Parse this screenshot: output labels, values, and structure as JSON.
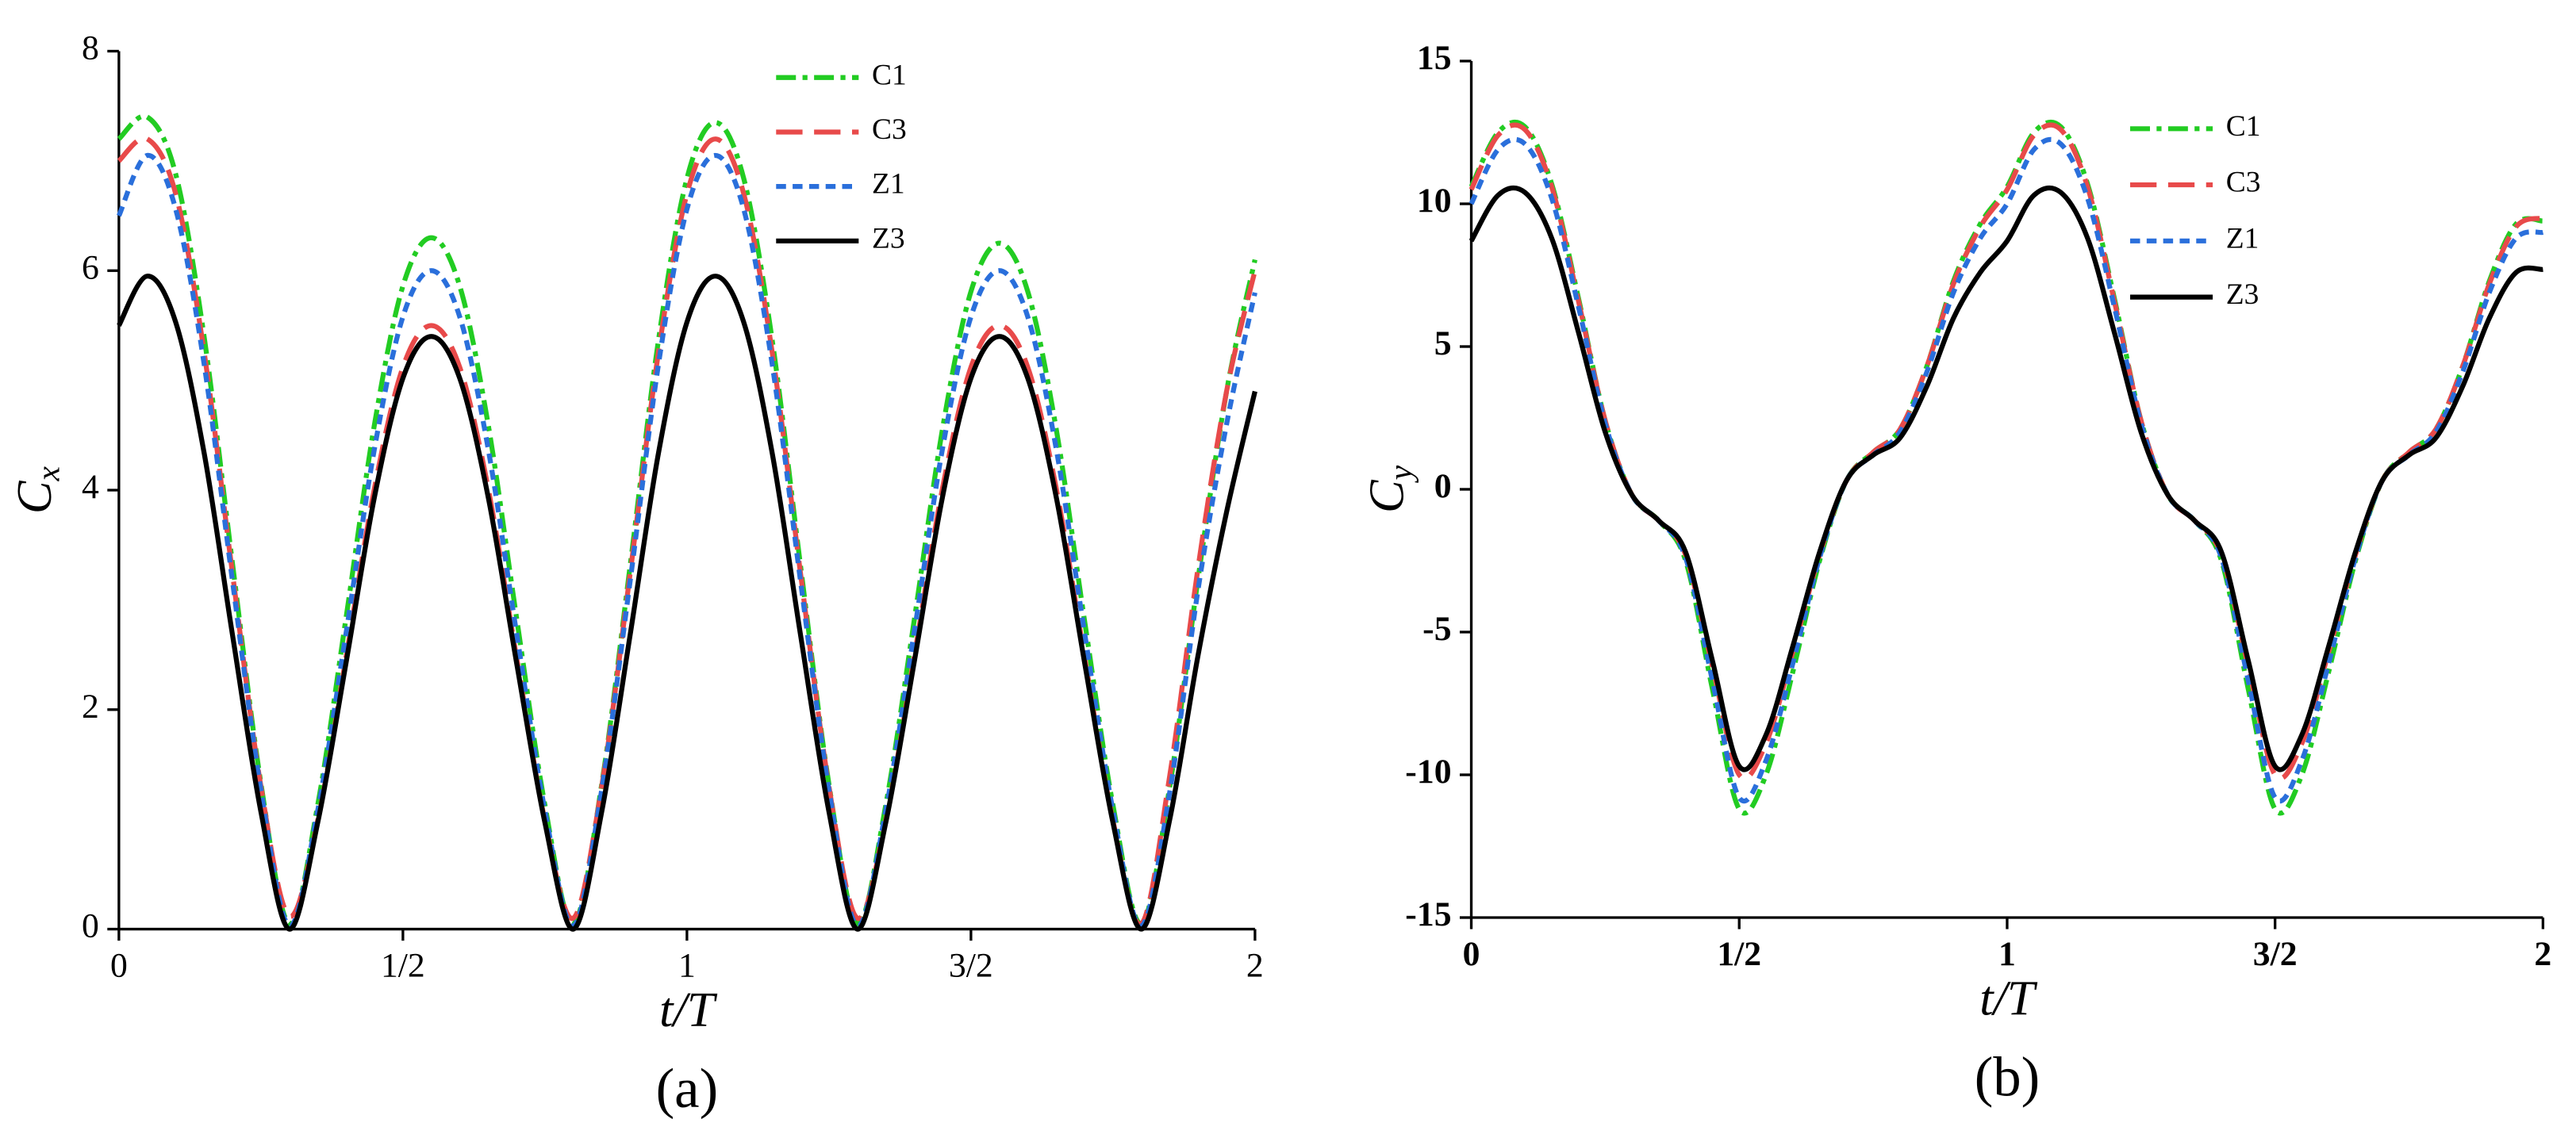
{
  "chart_data": [
    {
      "type": "line",
      "ylabel": "C",
      "ylabel_sub": "x",
      "xlabel": "t/T",
      "caption": "(a)",
      "xlim": [
        0,
        2
      ],
      "xticks": [
        0,
        {
          "value": 0.5,
          "label": "1/2"
        },
        1,
        {
          "value": 1.5,
          "label": "3/2"
        },
        2
      ],
      "ylim": [
        0,
        8
      ],
      "yticks": [
        0,
        2,
        4,
        6,
        8
      ],
      "legend": "upper right",
      "x": [
        0,
        0.05,
        0.1,
        0.15,
        0.2,
        0.25,
        0.3,
        0.35,
        0.4,
        0.45,
        0.5,
        0.55,
        0.6,
        0.65,
        0.7,
        0.75,
        0.8,
        0.85,
        0.9,
        0.95,
        1,
        1.05,
        1.1,
        1.15,
        1.2,
        1.25,
        1.3,
        1.35,
        1.4,
        1.45,
        1.5,
        1.55,
        1.6,
        1.65,
        1.7,
        1.75,
        1.8,
        1.85,
        1.9,
        1.95,
        2
      ],
      "series": [
        {
          "name": "C1",
          "color": "#22cc22",
          "dash": "12,4,3,4",
          "values": [
            7.2,
            7.4,
            6.88,
            5.4,
            3.33,
            1.33,
            0.05,
            1.13,
            2.84,
            4.6,
            5.86,
            6.3,
            5.86,
            4.6,
            2.84,
            1.13,
            0.05,
            1.32,
            3.31,
            5.37,
            6.84,
            7.35,
            6.84,
            5.37,
            3.31,
            1.32,
            0.05,
            1.13,
            2.81,
            4.56,
            5.81,
            6.25,
            5.81,
            4.56,
            2.81,
            1.13,
            0.05,
            1.3,
            3.2,
            4.9,
            6.1
          ]
        },
        {
          "name": "C3",
          "color": "#e84a4a",
          "dash": "16,7",
          "values": [
            7.0,
            7.2,
            6.7,
            5.26,
            3.24,
            1.3,
            0.12,
            0.99,
            2.48,
            4.02,
            5.12,
            5.5,
            5.12,
            4.02,
            2.48,
            0.99,
            0.1,
            1.3,
            3.24,
            5.26,
            6.7,
            7.2,
            6.7,
            5.26,
            3.24,
            1.3,
            0.1,
            0.99,
            2.48,
            4.02,
            5.12,
            5.5,
            5.12,
            4.02,
            2.48,
            0.99,
            0.05,
            1.4,
            3.3,
            4.9,
            6.0
          ]
        },
        {
          "name": "Z1",
          "color": "#2a6fdb",
          "dash": "6,4",
          "values": [
            6.5,
            7.05,
            6.56,
            5.15,
            3.17,
            1.27,
            0.03,
            1.08,
            2.7,
            4.38,
            5.58,
            6.0,
            5.58,
            4.38,
            2.7,
            1.08,
            0.03,
            1.27,
            3.17,
            5.15,
            6.56,
            7.05,
            6.56,
            5.15,
            3.17,
            1.27,
            0.03,
            1.08,
            2.7,
            4.38,
            5.58,
            6.0,
            5.58,
            4.38,
            2.7,
            1.08,
            0.03,
            1.25,
            3.1,
            4.6,
            5.8
          ]
        },
        {
          "name": "Z3",
          "color": "#000000",
          "dash": "none",
          "values": [
            5.5,
            5.95,
            5.53,
            4.34,
            2.68,
            1.07,
            0,
            0.97,
            2.43,
            3.94,
            5.02,
            5.4,
            5.02,
            3.94,
            2.43,
            0.97,
            0,
            1.07,
            2.68,
            4.34,
            5.53,
            5.95,
            5.53,
            4.34,
            2.68,
            1.07,
            0,
            0.97,
            2.43,
            3.94,
            5.02,
            5.4,
            5.02,
            3.94,
            2.43,
            0.97,
            0,
            1.0,
            2.5,
            3.8,
            4.9
          ]
        }
      ]
    },
    {
      "type": "line",
      "ylabel": "C",
      "ylabel_sub": "y",
      "xlabel": "t/T",
      "caption": "(b)",
      "xlim": [
        0,
        2
      ],
      "xticks": [
        0,
        {
          "value": 0.5,
          "label": "1/2"
        },
        1,
        {
          "value": 1.5,
          "label": "3/2"
        },
        2
      ],
      "ylim": [
        -15,
        15
      ],
      "yticks": [
        -15,
        -10,
        -5,
        0,
        5,
        10,
        15
      ],
      "legend": "upper right",
      "x": [
        0,
        0.05,
        0.1,
        0.15,
        0.2,
        0.25,
        0.3,
        0.35,
        0.4,
        0.45,
        0.5,
        0.55,
        0.6,
        0.65,
        0.7,
        0.75,
        0.8,
        0.85,
        0.9,
        0.95,
        1,
        1.05,
        1.1,
        1.15,
        1.2,
        1.25,
        1.3,
        1.35,
        1.4,
        1.45,
        1.5,
        1.55,
        1.6,
        1.65,
        1.7,
        1.75,
        1.8,
        1.85,
        1.9,
        1.95,
        2
      ],
      "series": [
        {
          "name": "C1",
          "color": "#22cc22",
          "dash": "12,4,3,4",
          "values": [
            10.6,
            12.5,
            12.7,
            10.7,
            6.7,
            2.4,
            -0.2,
            -1.1,
            -2.5,
            -7.0,
            -11.2,
            -10.0,
            -6.4,
            -2.5,
            0.3,
            1.3,
            2.1,
            4.3,
            7.3,
            9.3,
            10.6,
            12.5,
            12.7,
            10.7,
            6.7,
            2.4,
            -0.2,
            -1.1,
            -2.5,
            -7.0,
            -11.2,
            -10.0,
            -6.4,
            -2.5,
            0.3,
            1.3,
            2.1,
            4.3,
            7.3,
            9.3,
            9.4
          ]
        },
        {
          "name": "C3",
          "color": "#e84a4a",
          "dash": "16,7",
          "values": [
            10.5,
            12.4,
            12.6,
            10.6,
            6.6,
            2.4,
            -0.2,
            -1.1,
            -2.3,
            -6.2,
            -10.0,
            -8.9,
            -5.7,
            -2.3,
            0.3,
            1.3,
            2.1,
            4.3,
            7.2,
            9.2,
            10.5,
            12.4,
            12.6,
            10.6,
            6.6,
            2.4,
            -0.2,
            -1.1,
            -2.3,
            -6.2,
            -10.0,
            -8.9,
            -5.7,
            -2.3,
            0.3,
            1.3,
            2.1,
            4.3,
            7.2,
            9.2,
            9.5
          ]
        },
        {
          "name": "Z1",
          "color": "#2a6fdb",
          "dash": "6,4",
          "values": [
            10.0,
            11.9,
            12.1,
            10.2,
            6.4,
            2.3,
            -0.2,
            -1.1,
            -2.4,
            -6.7,
            -10.8,
            -9.5,
            -6.1,
            -2.4,
            0.3,
            1.2,
            2.0,
            4.1,
            6.9,
            8.8,
            10.0,
            11.9,
            12.1,
            10.2,
            6.4,
            2.3,
            -0.2,
            -1.1,
            -2.4,
            -6.7,
            -10.8,
            -9.5,
            -6.1,
            -2.4,
            0.3,
            1.2,
            2.0,
            4.1,
            6.9,
            8.8,
            9.0
          ]
        },
        {
          "name": "Z3",
          "color": "#000000",
          "dash": "none",
          "values": [
            8.7,
            10.3,
            10.4,
            8.8,
            5.5,
            2.0,
            -0.2,
            -1.1,
            -2.2,
            -6.0,
            -9.7,
            -8.6,
            -5.5,
            -2.2,
            0.3,
            1.2,
            1.8,
            3.6,
            6.0,
            7.6,
            8.7,
            10.3,
            10.4,
            8.8,
            5.5,
            2.0,
            -0.2,
            -1.1,
            -2.2,
            -6.0,
            -9.7,
            -8.6,
            -5.5,
            -2.2,
            0.3,
            1.2,
            1.8,
            3.6,
            6.0,
            7.6,
            7.7
          ]
        }
      ]
    }
  ]
}
